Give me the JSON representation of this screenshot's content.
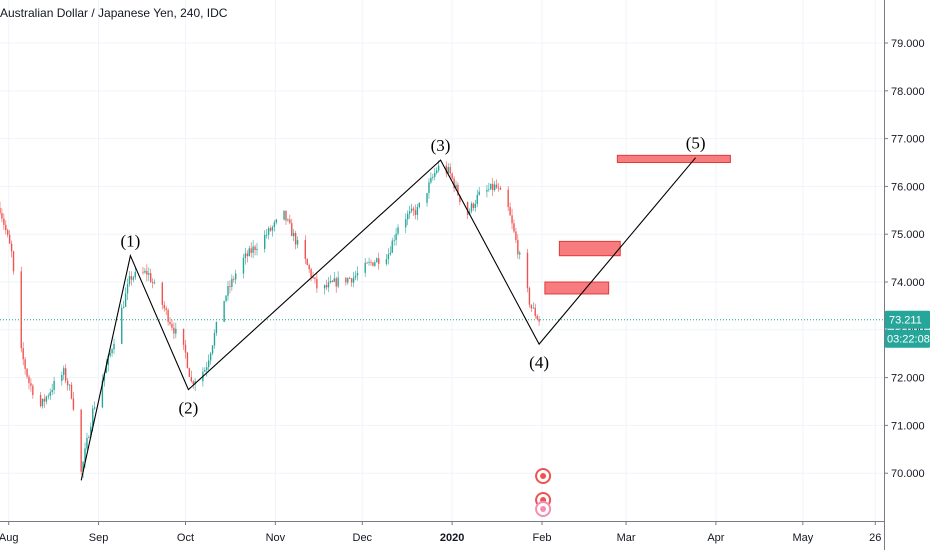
{
  "header": {
    "title": "Australian Dollar / Japanese Yen, 240, IDC"
  },
  "price_badge": {
    "price": "73.211",
    "countdown": "03:22:08"
  },
  "colors": {
    "up": "#26a69a",
    "down": "#ef5350",
    "grid": "#f0f3fa",
    "axis": "#787b86",
    "price_line": "#26a69a",
    "zone_fill": "#f77c80",
    "zone_stroke": "#e53935",
    "wave_line": "#000000"
  },
  "icons": {
    "event_markers": "event-marker-icon"
  },
  "chart_data": {
    "type": "candlestick",
    "symbol": "Australian Dollar / Japanese Yen",
    "interval": "240",
    "source": "IDC",
    "last_price": 73.211,
    "ylim": [
      69.0,
      79.9
    ],
    "y_ticks": [
      "70.000",
      "71.000",
      "72.000",
      "73.000",
      "74.000",
      "75.000",
      "76.000",
      "77.000",
      "78.000",
      "79.000"
    ],
    "x_range": [
      "2019-07-29",
      "2020-05-29"
    ],
    "x_ticks": [
      {
        "date": "2019-08-01",
        "label": "Aug"
      },
      {
        "date": "2019-09-01",
        "label": "Sep"
      },
      {
        "date": "2019-10-01",
        "label": "Oct"
      },
      {
        "date": "2019-11-01",
        "label": "Nov"
      },
      {
        "date": "2019-12-01",
        "label": "Dec"
      },
      {
        "date": "2020-01-01",
        "label": "2020"
      },
      {
        "date": "2020-02-01",
        "label": "Feb"
      },
      {
        "date": "2020-03-01",
        "label": "Mar"
      },
      {
        "date": "2020-04-01",
        "label": "Apr"
      },
      {
        "date": "2020-05-01",
        "label": "May"
      },
      {
        "date": "2020-05-26",
        "label": "26"
      }
    ],
    "price_path": [
      {
        "date": "2019-07-29",
        "price": 75.55
      },
      {
        "date": "2019-08-02",
        "price": 74.6
      },
      {
        "date": "2019-08-05",
        "price": 72.6
      },
      {
        "date": "2019-08-08",
        "price": 71.9
      },
      {
        "date": "2019-08-12",
        "price": 71.4
      },
      {
        "date": "2019-08-16",
        "price": 71.8
      },
      {
        "date": "2019-08-20",
        "price": 72.1
      },
      {
        "date": "2019-08-23",
        "price": 71.6
      },
      {
        "date": "2019-08-26",
        "price": 70.0
      },
      {
        "date": "2019-08-30",
        "price": 71.3
      },
      {
        "date": "2019-09-05",
        "price": 72.5
      },
      {
        "date": "2019-09-12",
        "price": 74.1
      },
      {
        "date": "2019-09-18",
        "price": 74.2
      },
      {
        "date": "2019-09-24",
        "price": 73.4
      },
      {
        "date": "2019-10-01",
        "price": 72.5
      },
      {
        "date": "2019-10-03",
        "price": 71.9
      },
      {
        "date": "2019-10-08",
        "price": 72.2
      },
      {
        "date": "2019-10-14",
        "price": 73.6
      },
      {
        "date": "2019-10-20",
        "price": 74.4
      },
      {
        "date": "2019-10-26",
        "price": 74.8
      },
      {
        "date": "2019-11-04",
        "price": 75.4
      },
      {
        "date": "2019-11-10",
        "price": 74.6
      },
      {
        "date": "2019-11-16",
        "price": 73.8
      },
      {
        "date": "2019-11-22",
        "price": 74.0
      },
      {
        "date": "2019-11-28",
        "price": 74.1
      },
      {
        "date": "2019-12-04",
        "price": 74.4
      },
      {
        "date": "2019-12-10",
        "price": 74.6
      },
      {
        "date": "2019-12-14",
        "price": 75.3
      },
      {
        "date": "2019-12-20",
        "price": 75.5
      },
      {
        "date": "2019-12-27",
        "price": 76.4
      },
      {
        "date": "2019-12-31",
        "price": 76.3
      },
      {
        "date": "2020-01-06",
        "price": 75.4
      },
      {
        "date": "2020-01-10",
        "price": 75.8
      },
      {
        "date": "2020-01-16",
        "price": 76.0
      },
      {
        "date": "2020-01-20",
        "price": 75.6
      },
      {
        "date": "2020-01-24",
        "price": 74.6
      },
      {
        "date": "2020-01-28",
        "price": 73.5
      },
      {
        "date": "2020-01-31",
        "price": 73.2
      }
    ],
    "annotations": [
      {
        "label": "(1)",
        "date": "2019-09-12",
        "price": 74.55
      },
      {
        "label": "(2)",
        "date": "2019-10-02",
        "price": 71.75
      },
      {
        "label": "(3)",
        "date": "2019-12-28",
        "price": 76.55
      },
      {
        "label": "(4)",
        "date": "2020-01-31",
        "price": 72.7
      },
      {
        "label": "(5)",
        "date": "2020-03-25",
        "price": 76.6
      }
    ],
    "wave_line": [
      {
        "date": "2019-08-26",
        "price": 69.85
      },
      {
        "date": "2019-09-12",
        "price": 74.55
      },
      {
        "date": "2019-10-02",
        "price": 71.75
      },
      {
        "date": "2019-12-28",
        "price": 76.55
      },
      {
        "date": "2020-01-31",
        "price": 72.7
      },
      {
        "date": "2020-03-25",
        "price": 76.6
      }
    ],
    "zones": [
      {
        "start": "2020-02-02",
        "end": "2020-02-24",
        "top": 74.0,
        "bottom": 73.75
      },
      {
        "start": "2020-02-07",
        "end": "2020-02-28",
        "top": 74.85,
        "bottom": 74.55
      },
      {
        "start": "2020-02-27",
        "end": "2020-04-06",
        "top": 76.65,
        "bottom": 76.5
      }
    ]
  }
}
